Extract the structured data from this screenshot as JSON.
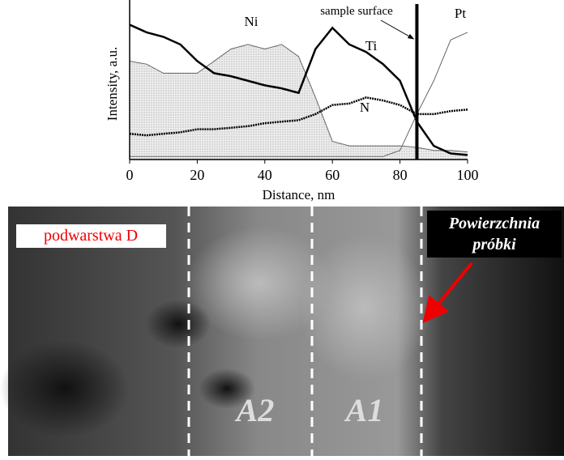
{
  "chart_data": {
    "type": "line",
    "x_label": "Distance, nm",
    "y_label": "Intensity, a.u.",
    "annotation": "sample surface",
    "surface_x": 85,
    "x": [
      0,
      5,
      10,
      15,
      20,
      25,
      30,
      35,
      40,
      45,
      50,
      55,
      60,
      65,
      70,
      75,
      80,
      85,
      90,
      95,
      100
    ],
    "series": [
      {
        "name": "Ni",
        "color": "#666666",
        "values": [
          65,
          63,
          57,
          57,
          57,
          65,
          73,
          76,
          73,
          76,
          68,
          41,
          12,
          9,
          9,
          9,
          9,
          8,
          6,
          6,
          5
        ]
      },
      {
        "name": "Ti",
        "color": "#000000",
        "values": [
          89,
          84,
          81,
          76,
          65,
          57,
          55,
          52,
          49,
          47,
          44,
          73,
          87,
          76,
          71,
          63,
          52,
          25,
          9,
          4,
          3
        ]
      },
      {
        "name": "N",
        "color": "#000000",
        "values": [
          17,
          16,
          17,
          18,
          20,
          20,
          21,
          22,
          24,
          25,
          26,
          30,
          36,
          37,
          41,
          39,
          36,
          30,
          30,
          32,
          33
        ]
      },
      {
        "name": "Pt",
        "color": "#666666",
        "values": [
          2,
          2,
          2,
          2,
          2,
          2,
          2,
          2,
          2,
          2,
          2,
          2,
          2,
          2,
          2,
          2,
          6,
          30,
          52,
          79,
          84
        ]
      }
    ],
    "xlim": [
      0,
      100
    ],
    "ylim": [
      0,
      100
    ],
    "xticks": [
      0,
      20,
      40,
      60,
      80,
      100
    ]
  },
  "image": {
    "layer_label": "podwarstwa D",
    "surface_label_1": "Powierzchnia",
    "surface_label_2": "próbki",
    "region_a2": "A2",
    "region_a1": "A1"
  }
}
